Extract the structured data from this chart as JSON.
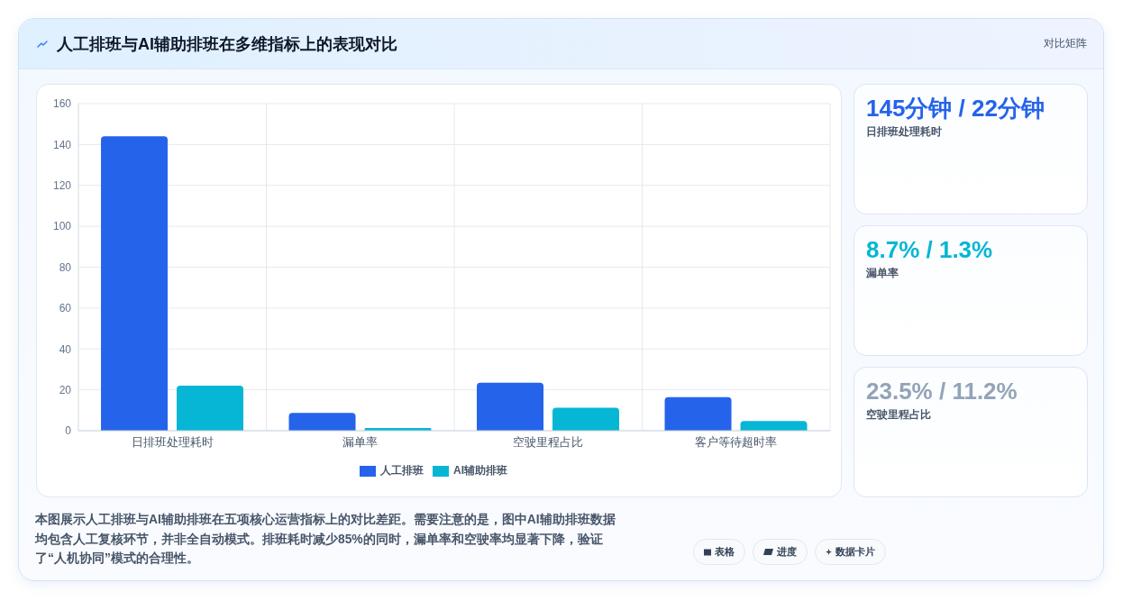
{
  "chart_data": [
    {
      "type": "bar",
      "title": "人工排班与AI辅助排班在多维指标上的表现对比",
      "categories": [
        "日排班处理耗时",
        "漏单率",
        "空驶里程占比",
        "客户等待超时率"
      ],
      "series": [
        {
          "name": "人工排班",
          "color": "#2563eb",
          "values": [
            144,
            8.7,
            23.5,
            16.4
          ]
        },
        {
          "name": "AI辅助排班",
          "color": "#06b6d4",
          "values": [
            22,
            1.3,
            11.2,
            4.7
          ]
        }
      ],
      "ylim": [
        0,
        160
      ],
      "yticks": [
        0,
        20,
        40,
        60,
        80,
        100,
        120,
        140,
        160
      ],
      "grid": true,
      "legend": "bottom",
      "annotations": [
        "对比矩阵",
        "本图展示人工排班与AI辅助排班在五项核心运营指标上的对比差距。需要注意的是，图中AI辅助排班数据均包含人工复核环节，并非全自动模式。排班耗时减少85%的同时，漏单率和空驶率均显著下降，验证了“人机协同”模式的合理性。",
        "表格",
        "进度",
        "数据卡片"
      ]
    },
    {
      "type": "other",
      "annotations": [
        "145分钟 / 22分钟",
        "日排班处理耗时",
        "8.7% / 1.3%",
        "漏单率",
        "23.5% / 11.2%",
        "空驶里程占比"
      ]
    }
  ]
}
